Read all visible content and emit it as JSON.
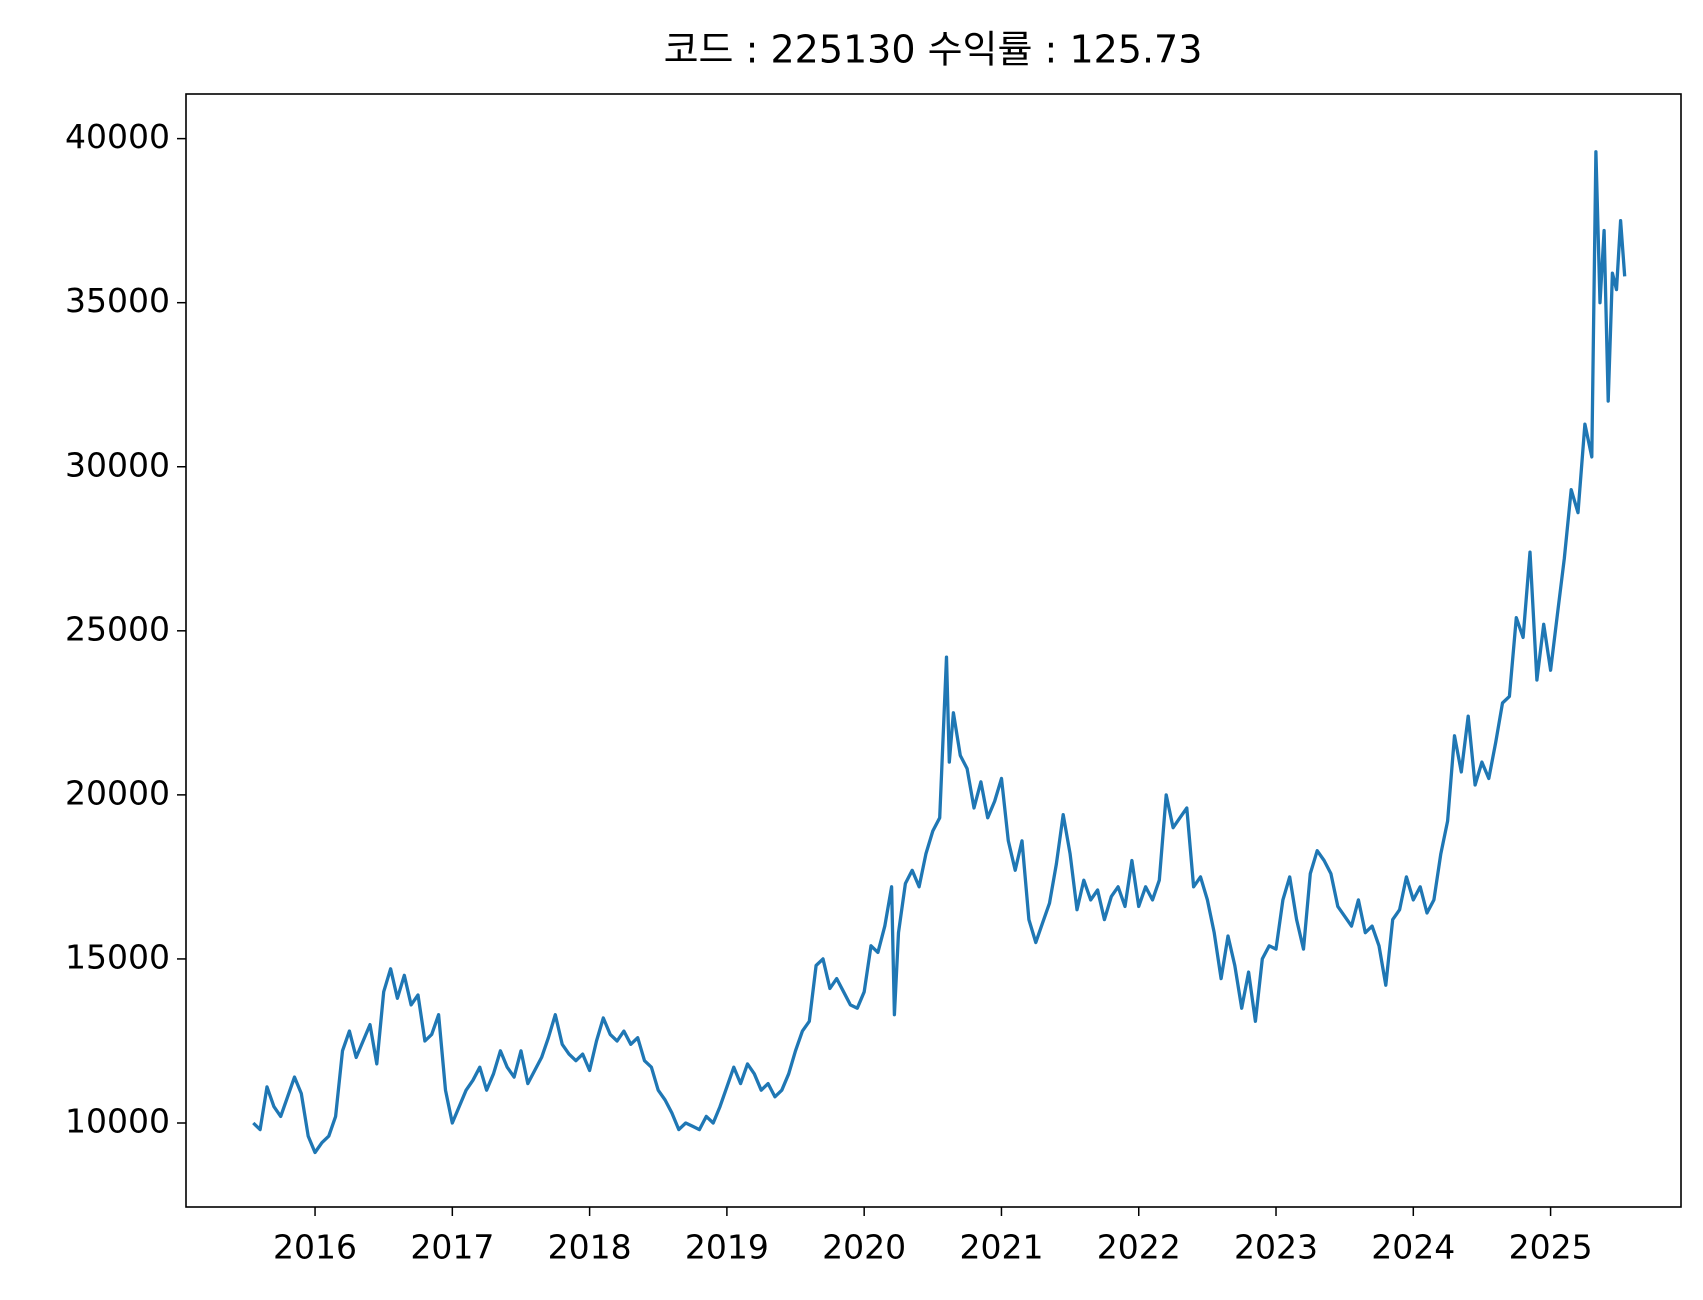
{
  "chart_data": {
    "type": "line",
    "title": "코드 : 225130 수익률 : 125.73",
    "x": [
      2015.55,
      2015.6,
      2015.65,
      2015.7,
      2015.75,
      2015.8,
      2015.85,
      2015.9,
      2015.95,
      2016.0,
      2016.05,
      2016.1,
      2016.15,
      2016.2,
      2016.25,
      2016.3,
      2016.35,
      2016.4,
      2016.45,
      2016.5,
      2016.55,
      2016.6,
      2016.65,
      2016.7,
      2016.75,
      2016.8,
      2016.85,
      2016.9,
      2016.95,
      2017.0,
      2017.05,
      2017.1,
      2017.15,
      2017.2,
      2017.25,
      2017.3,
      2017.35,
      2017.4,
      2017.45,
      2017.5,
      2017.55,
      2017.6,
      2017.65,
      2017.7,
      2017.75,
      2017.8,
      2017.85,
      2017.9,
      2017.95,
      2018.0,
      2018.05,
      2018.1,
      2018.15,
      2018.2,
      2018.25,
      2018.3,
      2018.35,
      2018.4,
      2018.45,
      2018.5,
      2018.55,
      2018.6,
      2018.65,
      2018.7,
      2018.75,
      2018.8,
      2018.85,
      2018.9,
      2018.95,
      2019.0,
      2019.05,
      2019.1,
      2019.15,
      2019.2,
      2019.25,
      2019.3,
      2019.35,
      2019.4,
      2019.45,
      2019.5,
      2019.55,
      2019.6,
      2019.65,
      2019.7,
      2019.75,
      2019.8,
      2019.85,
      2019.9,
      2019.95,
      2020.0,
      2020.05,
      2020.1,
      2020.15,
      2020.2,
      2020.22,
      2020.25,
      2020.3,
      2020.35,
      2020.4,
      2020.45,
      2020.5,
      2020.55,
      2020.6,
      2020.62,
      2020.65,
      2020.7,
      2020.75,
      2020.8,
      2020.85,
      2020.9,
      2020.95,
      2021.0,
      2021.05,
      2021.1,
      2021.15,
      2021.2,
      2021.25,
      2021.3,
      2021.35,
      2021.4,
      2021.45,
      2021.5,
      2021.55,
      2021.6,
      2021.65,
      2021.7,
      2021.75,
      2021.8,
      2021.85,
      2021.9,
      2021.95,
      2022.0,
      2022.05,
      2022.1,
      2022.15,
      2022.2,
      2022.25,
      2022.3,
      2022.35,
      2022.4,
      2022.45,
      2022.5,
      2022.55,
      2022.6,
      2022.65,
      2022.7,
      2022.75,
      2022.8,
      2022.85,
      2022.9,
      2022.95,
      2023.0,
      2023.05,
      2023.1,
      2023.15,
      2023.2,
      2023.25,
      2023.3,
      2023.35,
      2023.4,
      2023.45,
      2023.5,
      2023.55,
      2023.6,
      2023.65,
      2023.7,
      2023.75,
      2023.8,
      2023.85,
      2023.9,
      2023.95,
      2024.0,
      2024.05,
      2024.1,
      2024.15,
      2024.2,
      2024.25,
      2024.3,
      2024.35,
      2024.4,
      2024.45,
      2024.5,
      2024.55,
      2024.6,
      2024.65,
      2024.7,
      2024.75,
      2024.8,
      2024.85,
      2024.9,
      2024.95,
      2025.0,
      2025.05,
      2025.1,
      2025.15,
      2025.2,
      2025.25,
      2025.3,
      2025.33,
      2025.36,
      2025.39,
      2025.42,
      2025.45,
      2025.48,
      2025.51,
      2025.54
    ],
    "series": [
      {
        "color": "#1f77b4",
        "values": [
          10000,
          9800,
          11100,
          10500,
          10200,
          10800,
          11400,
          10900,
          9600,
          9100,
          9400,
          9600,
          10200,
          12200,
          12800,
          12000,
          12500,
          13000,
          11800,
          14000,
          14700,
          13800,
          14500,
          13600,
          13900,
          12500,
          12700,
          13300,
          11000,
          10000,
          10500,
          11000,
          11300,
          11700,
          11000,
          11500,
          12200,
          11700,
          11400,
          12200,
          11200,
          11600,
          12000,
          12600,
          13300,
          12400,
          12100,
          11900,
          12100,
          11600,
          12500,
          13200,
          12700,
          12500,
          12800,
          12400,
          12600,
          11900,
          11700,
          11000,
          10700,
          10300,
          9800,
          10000,
          9900,
          9800,
          10200,
          10000,
          10500,
          11100,
          11700,
          11200,
          11800,
          11500,
          11000,
          11200,
          10800,
          11000,
          11500,
          12200,
          12800,
          13100,
          14800,
          15000,
          14100,
          14400,
          14000,
          13600,
          13500,
          14000,
          15400,
          15200,
          16000,
          17200,
          13300,
          15800,
          17300,
          17700,
          17200,
          18200,
          18900,
          19300,
          24200,
          21000,
          22500,
          21200,
          20800,
          19600,
          20400,
          19300,
          19800,
          20500,
          18600,
          17700,
          18600,
          16200,
          15500,
          16100,
          16700,
          17900,
          19400,
          18200,
          16500,
          17400,
          16800,
          17100,
          16200,
          16900,
          17200,
          16600,
          18000,
          16600,
          17200,
          16800,
          17400,
          20000,
          19000,
          19300,
          19600,
          17200,
          17500,
          16800,
          15800,
          14400,
          15700,
          14800,
          13500,
          14600,
          13100,
          15000,
          15400,
          15300,
          16800,
          17500,
          16200,
          15300,
          17600,
          18300,
          18000,
          17600,
          16600,
          16300,
          16000,
          16800,
          15800,
          16000,
          15400,
          14200,
          16200,
          16500,
          17500,
          16800,
          17200,
          16400,
          16800,
          18200,
          19200,
          21800,
          20700,
          22400,
          20300,
          21000,
          20500,
          21600,
          22800,
          23000,
          25400,
          24800,
          27400,
          23500,
          25200,
          23800,
          25500,
          27200,
          29300,
          28600,
          31300,
          30300,
          39600,
          35000,
          37200,
          32000,
          35900,
          35400,
          37500,
          35800
        ]
      }
    ],
    "xlim": [
      2015.06,
      2025.95
    ],
    "xticks": [
      2016,
      2017,
      2018,
      2019,
      2020,
      2021,
      2022,
      2023,
      2024,
      2025
    ],
    "ylim": [
      7440,
      41360
    ],
    "yticks": [
      10000,
      15000,
      20000,
      25000,
      30000,
      35000,
      40000
    ]
  }
}
